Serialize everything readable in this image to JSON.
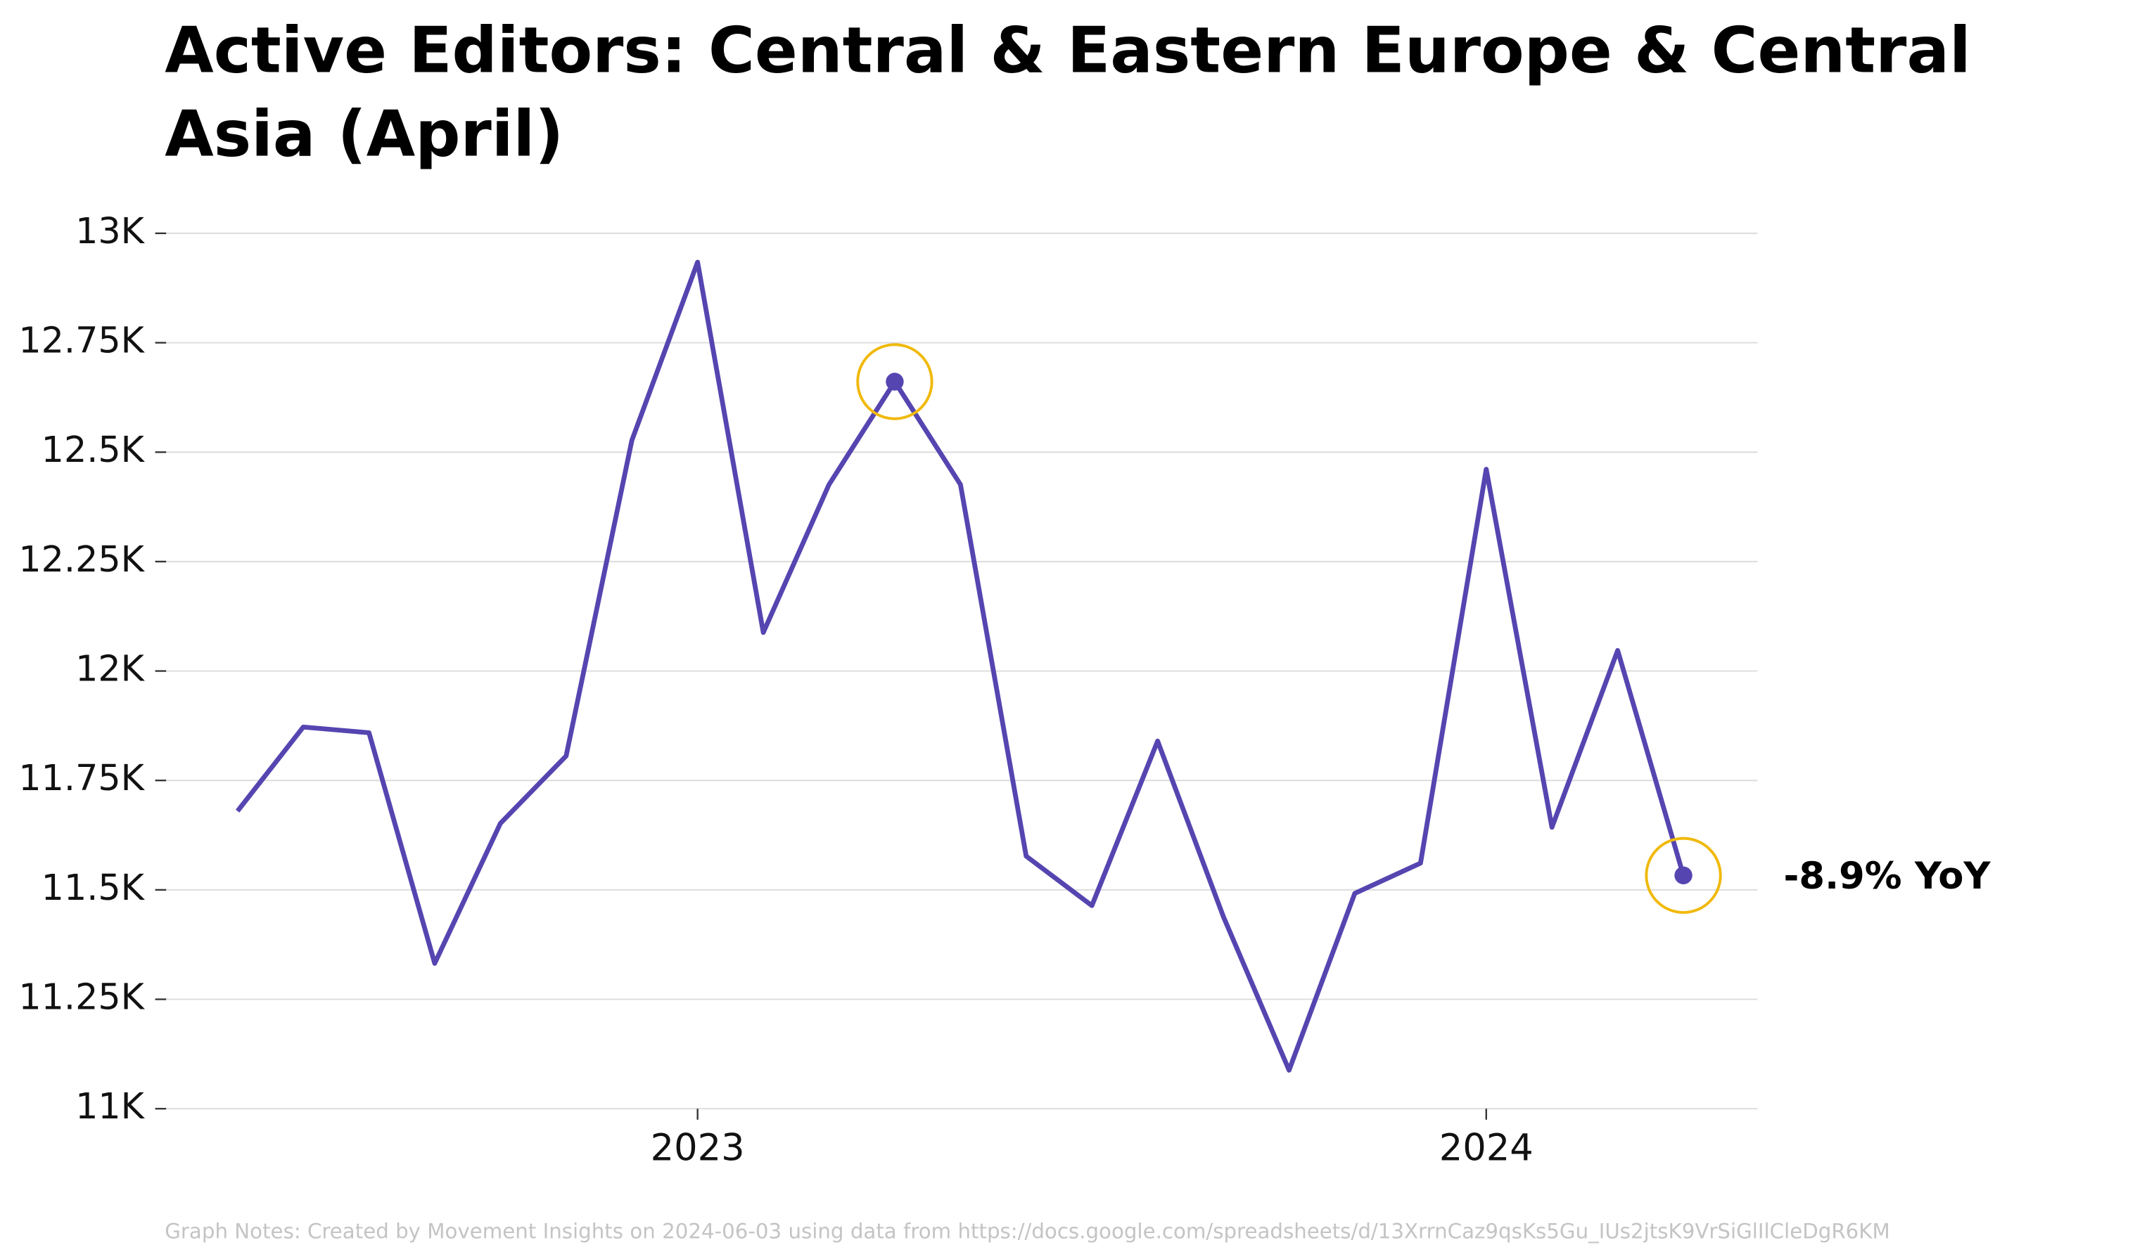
{
  "chart_data": {
    "type": "line",
    "title": [
      "Active Editors: Central & Eastern Europe & Central",
      "Asia (April)"
    ],
    "categories": [
      null,
      null,
      null,
      null,
      null,
      null,
      null,
      "2023",
      null,
      null,
      null,
      null,
      null,
      null,
      null,
      null,
      null,
      null,
      null,
      "2024",
      null,
      null,
      null
    ],
    "values": [
      11680,
      11872,
      11859,
      11332,
      11652,
      11806,
      12527,
      12934,
      12088,
      12426,
      12661,
      12426,
      11577,
      11464,
      11840,
      11439,
      11088,
      11492,
      11561,
      12461,
      11643,
      12047,
      11533
    ],
    "color": "#5545b0",
    "highlight_points": [
      10,
      22
    ],
    "highlight_color": "#f0b90b",
    "annotation": "-8.9% YoY",
    "ylim": [
      11000,
      13000
    ],
    "yticks": [
      {
        "value": 11000,
        "label": "11K"
      },
      {
        "value": 11250,
        "label": "11.25K"
      },
      {
        "value": 11500,
        "label": "11.5K"
      },
      {
        "value": 11750,
        "label": "11.75K"
      },
      {
        "value": 12000,
        "label": "12K"
      },
      {
        "value": 12250,
        "label": "12.25K"
      },
      {
        "value": 12500,
        "label": "12.5K"
      },
      {
        "value": 12750,
        "label": "12.75K"
      },
      {
        "value": 13000,
        "label": "13K"
      }
    ],
    "grid": true,
    "footnote": "Graph Notes: Created by Movement Insights on 2024-06-03 using data from https://docs.google.com/spreadsheets/d/13XrrnCaz9qsKs5Gu_IUs2jtsK9VrSiGlIlCleDgR6KM"
  }
}
